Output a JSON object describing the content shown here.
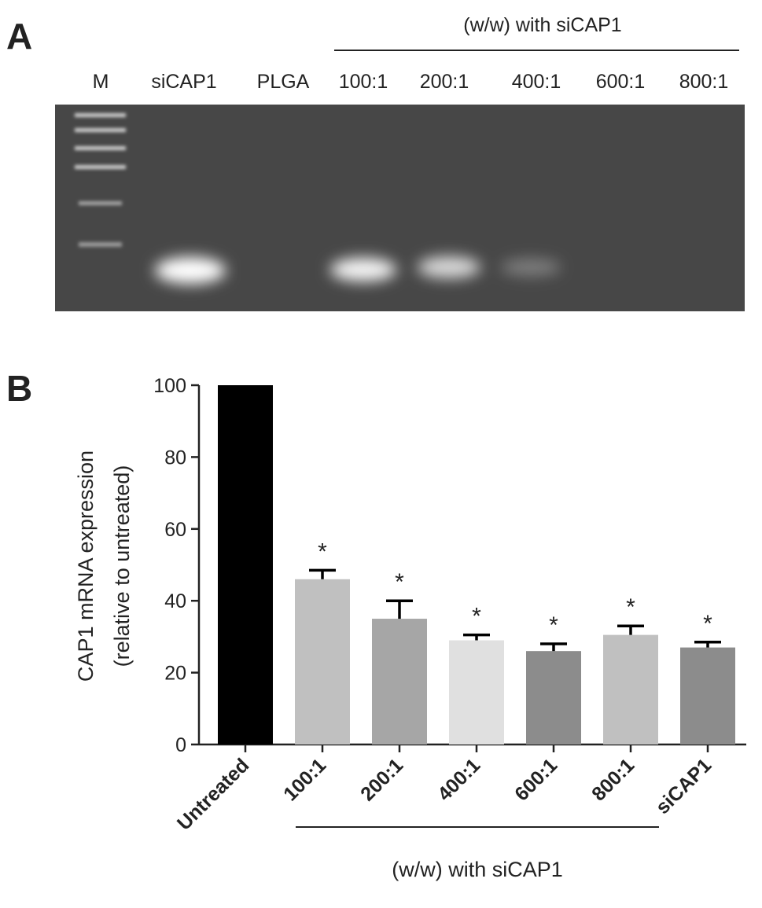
{
  "panel_a": {
    "label": "A",
    "group_label": "(w/w) with siCAP1",
    "lanes": [
      "M",
      "siCAP1",
      "PLGA",
      "100:1",
      "200:1",
      "400:1",
      "600:1",
      "800:1"
    ]
  },
  "chart_data": {
    "type": "bar",
    "panel_label": "B",
    "ylabel": [
      "CAP1 mRNA expression",
      "(relative to untreated)"
    ],
    "categories": [
      "Untreated",
      "100:1",
      "200:1",
      "400:1",
      "600:1",
      "800:1",
      "siCAP1"
    ],
    "values": [
      100,
      46,
      35,
      29,
      26,
      30.5,
      27
    ],
    "errors": [
      null,
      2.5,
      5,
      1.5,
      2,
      2.5,
      1.5
    ],
    "colors": [
      "#000000",
      "#c0c0c0",
      "#a6a6a6",
      "#e0e0e0",
      "#8c8c8c",
      "#c0c0c0",
      "#8c8c8c"
    ],
    "annotations": [
      null,
      "*",
      "*",
      "*",
      "*",
      "*",
      "*"
    ],
    "group_label": "(w/w) with siCAP1",
    "ylim": [
      0,
      100
    ],
    "yticks": [
      0,
      20,
      40,
      60,
      80,
      100
    ]
  }
}
